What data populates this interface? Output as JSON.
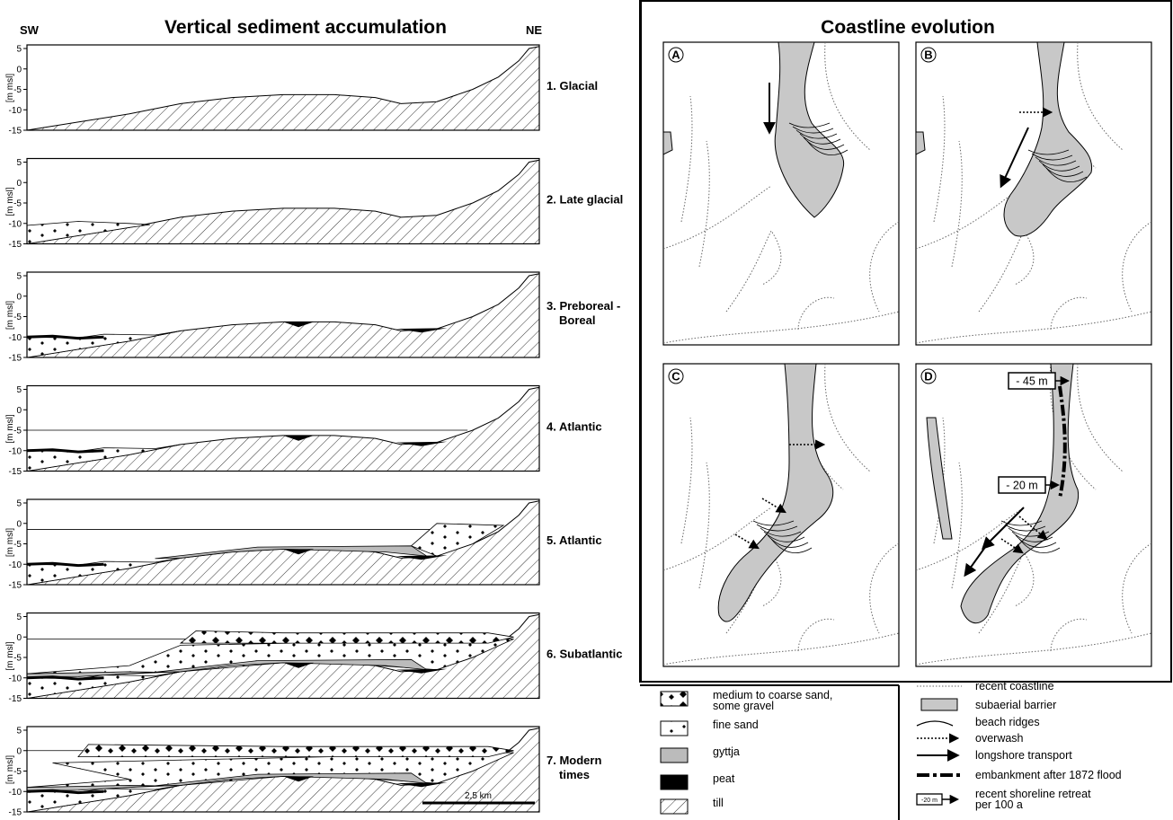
{
  "left": {
    "title": "Vertical sediment accumulation",
    "sw": "SW",
    "ne": "NE",
    "axis_label": "[m msl]",
    "ticks": [
      "5",
      "0",
      "-5",
      "-10",
      "-15"
    ],
    "panels": [
      [
        "1. Glacial"
      ],
      [
        "2. Late glacial"
      ],
      [
        "3. Preboreal -",
        "Boreal"
      ],
      [
        "4. Atlantic"
      ],
      [
        "5. Atlantic"
      ],
      [
        "6. Subatlantic"
      ],
      [
        "7. Modern",
        "times"
      ]
    ],
    "scale_bar": "2,5 km"
  },
  "right": {
    "title": "Coastline evolution",
    "panels": [
      "A",
      "B",
      "C",
      "D"
    ],
    "retreat_labels": [
      "- 45 m",
      "- 20 m"
    ]
  },
  "legend_sediments": [
    [
      "medium to coarse sand,",
      "some gravel"
    ],
    [
      "fine sand"
    ],
    [
      "gyttja"
    ],
    [
      "peat"
    ],
    [
      "till"
    ]
  ],
  "legend_coast": [
    [
      "recent coastline"
    ],
    [
      "subaerial barrier"
    ],
    [
      "beach ridges"
    ],
    [
      "overwash"
    ],
    [
      "longshore transport"
    ],
    [
      "embankment after 1872 flood"
    ],
    [
      "recent shoreline retreat",
      "per 100 a"
    ]
  ],
  "legend_icon_label": "-20 m"
}
